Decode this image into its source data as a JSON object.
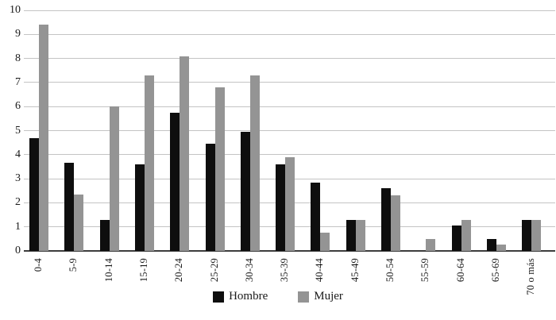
{
  "chart_data": {
    "type": "bar",
    "title": "",
    "xlabel": "",
    "ylabel": "",
    "categories": [
      "0-4",
      "5-9",
      "10-14",
      "15-19",
      "20-24",
      "25-29",
      "30-34",
      "35-39",
      "40-44",
      "45-49",
      "50-54",
      "55-59",
      "60-64",
      "65-69",
      "70 o más"
    ],
    "series": [
      {
        "name": "Hombre",
        "color": "#0e0e0e",
        "values": [
          4.7,
          3.65,
          1.3,
          3.6,
          5.75,
          4.45,
          4.95,
          3.6,
          2.85,
          1.3,
          2.6,
          0,
          1.05,
          0.5,
          1.3
        ]
      },
      {
        "name": "Mujer",
        "color": "#949494",
        "values": [
          9.4,
          2.35,
          6.0,
          7.3,
          8.1,
          6.8,
          7.3,
          3.9,
          0.75,
          1.3,
          2.3,
          0.5,
          1.3,
          0.25,
          1.3
        ]
      }
    ],
    "ylim": [
      0,
      10
    ],
    "yticks": [
      0,
      1,
      2,
      3,
      4,
      5,
      6,
      7,
      8,
      9,
      10
    ],
    "grid": true,
    "legend_position": "bottom",
    "x_tick_rotation_degrees": 90
  },
  "colors": {
    "background": "#ffffff",
    "gridline": "#c4c4c4",
    "axis_line": "#3d3d3d",
    "text": "#1a1a1a"
  }
}
